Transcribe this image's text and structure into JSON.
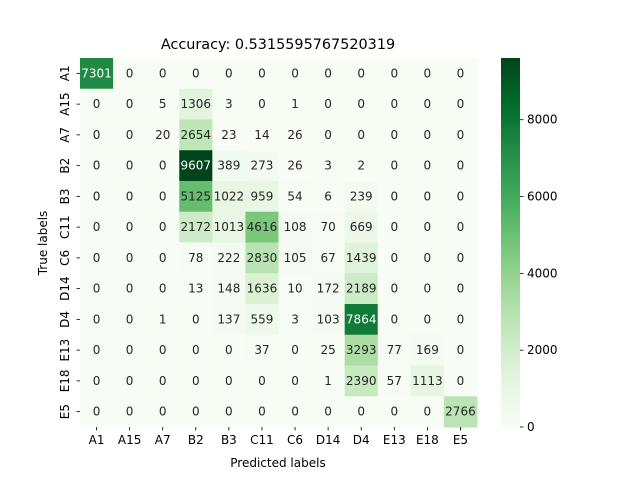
{
  "chart_data": {
    "type": "heatmap",
    "title": "Accuracy: 0.5315595767520319",
    "xlabel": "Predicted labels",
    "ylabel": "True labels",
    "x_categories": [
      "A1",
      "A15",
      "A7",
      "B2",
      "B3",
      "C11",
      "C6",
      "D14",
      "D4",
      "E13",
      "E18",
      "E5"
    ],
    "y_categories": [
      "A1",
      "A15",
      "A7",
      "B2",
      "B3",
      "C11",
      "C6",
      "D14",
      "D4",
      "E13",
      "E18",
      "E5"
    ],
    "values": [
      [
        7301,
        0,
        0,
        0,
        0,
        0,
        0,
        0,
        0,
        0,
        0,
        0
      ],
      [
        0,
        0,
        5,
        1306,
        3,
        0,
        1,
        0,
        0,
        0,
        0,
        0
      ],
      [
        0,
        0,
        20,
        2654,
        23,
        14,
        26,
        0,
        0,
        0,
        0,
        0
      ],
      [
        0,
        0,
        0,
        9607,
        389,
        273,
        26,
        3,
        2,
        0,
        0,
        0
      ],
      [
        0,
        0,
        0,
        5125,
        1022,
        959,
        54,
        6,
        239,
        0,
        0,
        0
      ],
      [
        0,
        0,
        0,
        2172,
        1013,
        4616,
        108,
        70,
        669,
        0,
        0,
        0
      ],
      [
        0,
        0,
        0,
        78,
        222,
        2830,
        105,
        67,
        1439,
        0,
        0,
        0
      ],
      [
        0,
        0,
        0,
        13,
        148,
        1636,
        10,
        172,
        2189,
        0,
        0,
        0
      ],
      [
        0,
        0,
        1,
        0,
        137,
        559,
        3,
        103,
        7864,
        0,
        0,
        0
      ],
      [
        0,
        0,
        0,
        0,
        0,
        37,
        0,
        25,
        3293,
        77,
        169,
        0
      ],
      [
        0,
        0,
        0,
        0,
        0,
        0,
        0,
        1,
        2390,
        57,
        1113,
        0
      ],
      [
        0,
        0,
        0,
        0,
        0,
        0,
        0,
        0,
        0,
        0,
        0,
        2766
      ]
    ],
    "vmin": 0,
    "vmax": 9607,
    "colormap": "Greens",
    "colorbar_ticks": [
      0,
      2000,
      4000,
      6000,
      8000
    ],
    "annotations": true,
    "grid": false
  }
}
